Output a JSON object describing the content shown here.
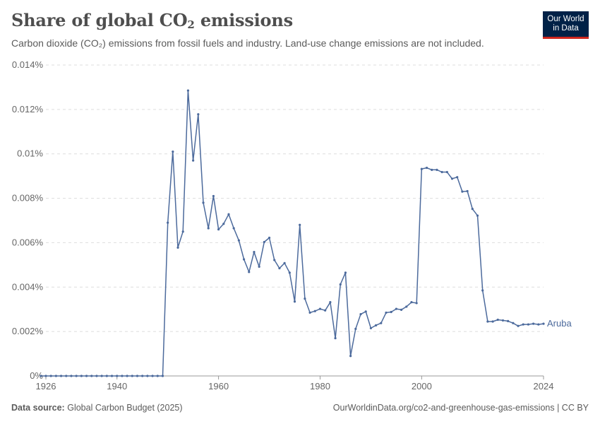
{
  "header": {
    "title_main": "Share of global CO",
    "title_sub": "2",
    "title_end": " emissions",
    "subtitle": "Carbon dioxide (CO₂) emissions from fossil fuels and industry. Land-use change emissions are not included."
  },
  "logo": {
    "line1": "Our World",
    "line2": "in Data",
    "bg_color": "#002147",
    "accent_color": "#ce261e"
  },
  "footer": {
    "source_label": "Data source:",
    "source_text": "Global Carbon Budget (2025)",
    "url_text": "OurWorldinData.org/co2-and-greenhouse-gas-emissions | CC BY"
  },
  "chart_data": {
    "type": "line",
    "title": "Share of global CO₂ emissions",
    "y_tick_labels": [
      "0%",
      "0.002%",
      "0.004%",
      "0.006%",
      "0.008%",
      "0.01%",
      "0.012%",
      "0.014%"
    ],
    "y_ticks": [
      0,
      0.002,
      0.004,
      0.006,
      0.008,
      0.01,
      0.012,
      0.014
    ],
    "x_tick_labels": [
      "1926",
      "1940",
      "1960",
      "1980",
      "2000",
      "2024"
    ],
    "x_ticks": [
      1926,
      1940,
      1960,
      1980,
      2000,
      2024
    ],
    "xlim": [
      1926,
      2024
    ],
    "ylim": [
      0,
      0.014
    ],
    "grid": "horizontal-dashed",
    "series": [
      {
        "name": "Aruba",
        "color": "#4c6a9c",
        "x": [
          1925,
          1926,
          1927,
          1928,
          1929,
          1930,
          1931,
          1932,
          1933,
          1934,
          1935,
          1936,
          1937,
          1938,
          1939,
          1940,
          1941,
          1942,
          1943,
          1944,
          1945,
          1946,
          1947,
          1948,
          1949,
          1950,
          1951,
          1952,
          1953,
          1954,
          1955,
          1956,
          1957,
          1958,
          1959,
          1960,
          1961,
          1962,
          1963,
          1964,
          1965,
          1966,
          1967,
          1968,
          1969,
          1970,
          1971,
          1972,
          1973,
          1974,
          1975,
          1976,
          1977,
          1978,
          1979,
          1980,
          1981,
          1982,
          1983,
          1984,
          1985,
          1986,
          1987,
          1988,
          1989,
          1990,
          1991,
          1992,
          1993,
          1994,
          1995,
          1996,
          1997,
          1998,
          1999,
          2000,
          2001,
          2002,
          2003,
          2004,
          2005,
          2006,
          2007,
          2008,
          2009,
          2010,
          2011,
          2012,
          2013,
          2014,
          2015,
          2016,
          2017,
          2018,
          2019,
          2020,
          2021,
          2022,
          2023,
          2024
        ],
        "y": [
          0,
          0,
          0,
          0,
          0,
          0,
          0,
          0,
          0,
          0,
          0,
          0,
          0,
          0,
          0,
          0,
          0,
          0,
          0,
          0,
          0,
          0,
          0,
          0,
          0,
          0.0069,
          0.0101,
          0.00578,
          0.0065,
          0.01285,
          0.0097,
          0.01178,
          0.0078,
          0.00665,
          0.0081,
          0.0066,
          0.00685,
          0.00728,
          0.00665,
          0.0061,
          0.00525,
          0.00468,
          0.00558,
          0.00492,
          0.00603,
          0.00622,
          0.00522,
          0.00485,
          0.00508,
          0.00465,
          0.00335,
          0.0068,
          0.00348,
          0.00285,
          0.00292,
          0.00302,
          0.00295,
          0.00332,
          0.0017,
          0.00412,
          0.00465,
          0.0009,
          0.00212,
          0.00278,
          0.0029,
          0.00215,
          0.00228,
          0.00238,
          0.00285,
          0.00288,
          0.00302,
          0.00298,
          0.00312,
          0.00332,
          0.00328,
          0.00932,
          0.00937,
          0.00928,
          0.00928,
          0.00918,
          0.00918,
          0.00888,
          0.00895,
          0.0083,
          0.00832,
          0.00752,
          0.00722,
          0.00385,
          0.00245,
          0.00245,
          0.00253,
          0.0025,
          0.00247,
          0.00238,
          0.00225,
          0.00232,
          0.00232,
          0.00235,
          0.00232,
          0.00235
        ]
      }
    ]
  }
}
